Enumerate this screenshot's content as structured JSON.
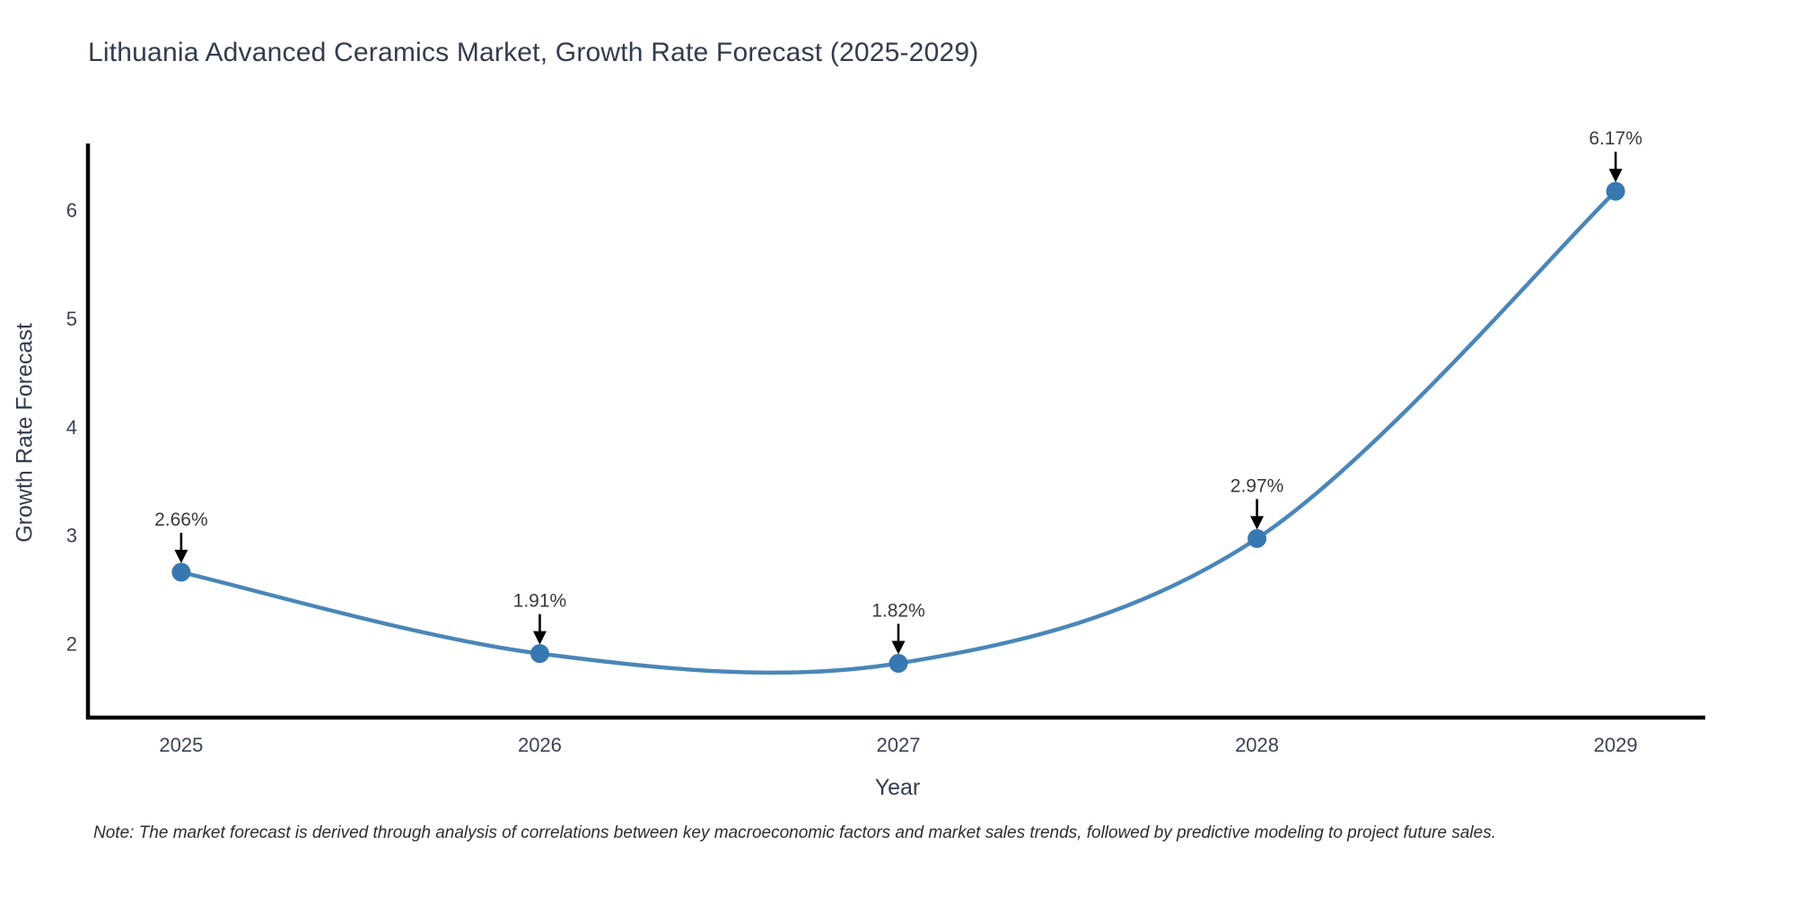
{
  "page": {
    "background": "#ffffff"
  },
  "chart_data": {
    "type": "line",
    "title": "Lithuania Advanced Ceramics Market, Growth Rate Forecast (2025-2029)",
    "xlabel": "Year",
    "ylabel": "Growth Rate Forecast",
    "categories": [
      "2025",
      "2026",
      "2027",
      "2028",
      "2029"
    ],
    "x": [
      2025,
      2026,
      2027,
      2028,
      2029
    ],
    "values": [
      2.66,
      1.91,
      1.82,
      2.97,
      6.17
    ],
    "point_labels": [
      "2.66%",
      "1.91%",
      "1.82%",
      "2.97%",
      "6.17%"
    ],
    "yticks": [
      2,
      3,
      4,
      5,
      6
    ],
    "xticks": [
      "2025",
      "2026",
      "2027",
      "2028",
      "2029"
    ],
    "xlim": [
      2024.74,
      2029.25
    ],
    "ylim": [
      1.32,
      6.61
    ],
    "grid": false,
    "legend_position": "none",
    "line_shape": "spline",
    "annotations_style": "value labels with downward black arrows above each point",
    "colors": {
      "line": "#4a86b8",
      "marker": "#3878b0",
      "axis": "#000000",
      "annotation_arrow": "#000000",
      "annotation_text": "#3a3a3a",
      "tick_text": "#3b4252",
      "title_text": "#333c4d"
    },
    "note": "Note: The market forecast is derived through analysis of correlations between key macroeconomic factors and market sales trends, followed by predictive modeling to project future sales."
  }
}
